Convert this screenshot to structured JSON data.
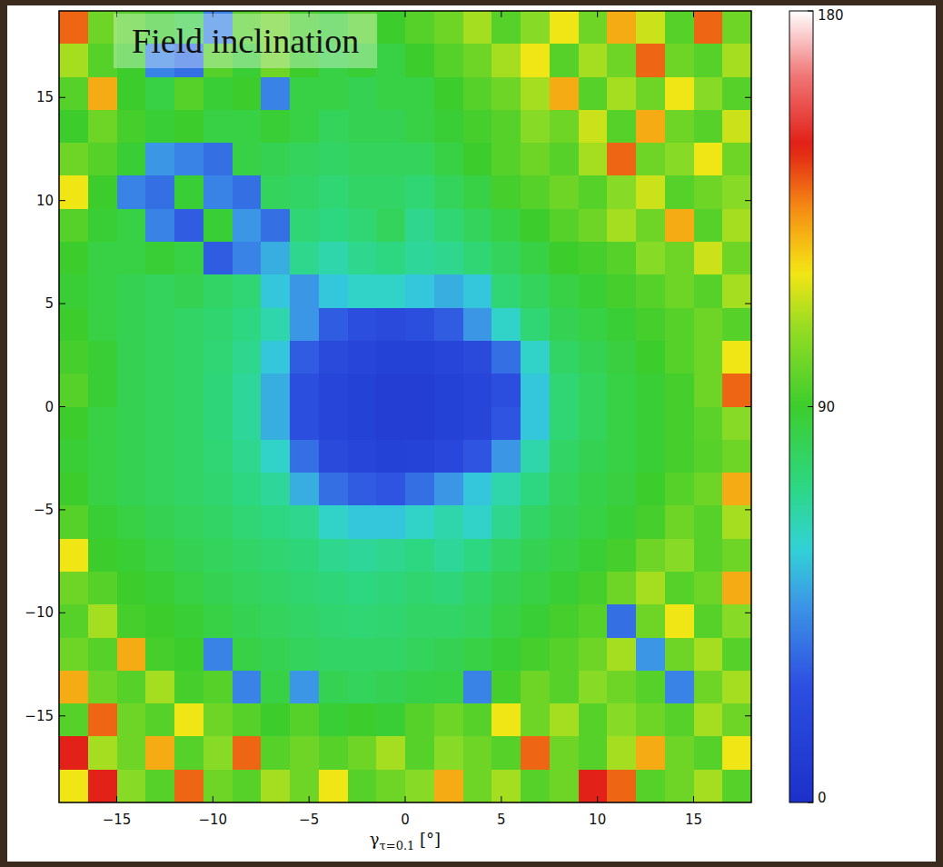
{
  "chart_data": {
    "type": "heatmap",
    "title": "Field inclination",
    "xlabel": "γτ=0.1 [°]",
    "xlim": [
      -18,
      18
    ],
    "ylim": [
      -19.2,
      19.2
    ],
    "xticks": [
      {
        "value": -15,
        "label": "−15"
      },
      {
        "value": -10,
        "label": "−10"
      },
      {
        "value": -5,
        "label": "−5"
      },
      0,
      5,
      10,
      15
    ],
    "yticks": [
      {
        "value": -15,
        "label": "−15"
      },
      {
        "value": -10,
        "label": "−10"
      },
      {
        "value": -5,
        "label": "−5"
      },
      0,
      5,
      10,
      15
    ],
    "x": [
      -17.25,
      -15.75,
      -14.25,
      -12.75,
      -11.25,
      -9.75,
      -8.25,
      -6.75,
      -5.25,
      -3.75,
      -2.25,
      -0.75,
      0.75,
      2.25,
      3.75,
      5.25,
      6.75,
      8.25,
      9.75,
      11.25,
      12.75,
      14.25,
      15.75,
      17.25
    ],
    "y": [
      18.4,
      16.8,
      15.2,
      13.6,
      12,
      10.4,
      8.8,
      7.2,
      5.6,
      4,
      2.4,
      0.8,
      -0.8,
      -2.4,
      -4,
      -5.6,
      -7.2,
      -8.8,
      -10.4,
      -12,
      -13.6,
      -15.2,
      -16.8,
      -18.4
    ],
    "cells": [
      [
        140,
        100,
        95,
        90,
        85,
        40,
        95,
        100,
        92,
        88,
        95,
        90,
        95,
        100,
        110,
        95,
        105,
        120,
        100,
        130,
        115,
        95,
        140,
        100
      ],
      [
        110,
        95,
        90,
        40,
        35,
        95,
        88,
        100,
        90,
        85,
        88,
        85,
        90,
        95,
        100,
        110,
        120,
        95,
        110,
        100,
        140,
        100,
        95,
        110
      ],
      [
        95,
        130,
        90,
        85,
        95,
        88,
        90,
        40,
        85,
        85,
        82,
        85,
        85,
        90,
        95,
        100,
        110,
        130,
        95,
        110,
        100,
        120,
        105,
        95
      ],
      [
        90,
        100,
        92,
        88,
        90,
        85,
        85,
        88,
        85,
        80,
        82,
        82,
        85,
        88,
        92,
        95,
        105,
        100,
        115,
        95,
        130,
        100,
        95,
        115
      ],
      [
        100,
        95,
        88,
        45,
        40,
        35,
        85,
        82,
        80,
        78,
        80,
        80,
        80,
        85,
        90,
        95,
        100,
        95,
        110,
        140,
        100,
        105,
        120,
        100
      ],
      [
        120,
        90,
        40,
        35,
        88,
        40,
        35,
        80,
        78,
        75,
        78,
        78,
        75,
        80,
        85,
        92,
        95,
        100,
        95,
        105,
        115,
        95,
        100,
        105
      ],
      [
        95,
        88,
        85,
        40,
        30,
        88,
        45,
        35,
        75,
        72,
        75,
        80,
        70,
        75,
        80,
        85,
        90,
        95,
        100,
        110,
        100,
        130,
        95,
        110
      ],
      [
        90,
        85,
        85,
        88,
        85,
        30,
        40,
        50,
        70,
        65,
        70,
        72,
        68,
        70,
        75,
        80,
        85,
        90,
        92,
        95,
        105,
        100,
        115,
        100
      ],
      [
        88,
        85,
        82,
        80,
        82,
        78,
        75,
        55,
        45,
        55,
        60,
        60,
        55,
        50,
        55,
        75,
        80,
        85,
        88,
        92,
        95,
        100,
        95,
        110
      ],
      [
        90,
        85,
        82,
        80,
        78,
        76,
        72,
        65,
        45,
        30,
        25,
        22,
        25,
        30,
        45,
        60,
        75,
        82,
        85,
        88,
        92,
        95,
        100,
        95
      ],
      [
        92,
        88,
        82,
        80,
        78,
        75,
        70,
        55,
        30,
        22,
        18,
        15,
        15,
        18,
        22,
        35,
        60,
        78,
        82,
        86,
        90,
        95,
        100,
        120
      ],
      [
        95,
        88,
        82,
        80,
        78,
        74,
        68,
        50,
        25,
        18,
        15,
        12,
        12,
        15,
        18,
        25,
        55,
        75,
        80,
        85,
        88,
        92,
        100,
        140
      ],
      [
        90,
        85,
        82,
        80,
        78,
        74,
        68,
        50,
        25,
        18,
        15,
        12,
        12,
        15,
        18,
        28,
        55,
        75,
        80,
        85,
        88,
        92,
        96,
        105
      ],
      [
        88,
        85,
        82,
        80,
        78,
        75,
        70,
        60,
        35,
        22,
        18,
        15,
        16,
        20,
        28,
        45,
        65,
        78,
        82,
        85,
        88,
        92,
        95,
        100
      ],
      [
        90,
        85,
        82,
        80,
        78,
        76,
        72,
        68,
        50,
        35,
        30,
        28,
        35,
        45,
        55,
        65,
        72,
        80,
        84,
        86,
        90,
        95,
        100,
        130
      ],
      [
        95,
        88,
        85,
        82,
        80,
        78,
        75,
        72,
        70,
        60,
        55,
        55,
        60,
        65,
        60,
        70,
        78,
        82,
        85,
        88,
        92,
        100,
        95,
        110
      ],
      [
        120,
        90,
        88,
        85,
        82,
        80,
        78,
        76,
        74,
        70,
        68,
        70,
        72,
        68,
        72,
        78,
        82,
        85,
        88,
        92,
        100,
        105,
        95,
        100
      ],
      [
        100,
        95,
        90,
        88,
        85,
        82,
        80,
        78,
        76,
        74,
        72,
        74,
        76,
        74,
        78,
        82,
        85,
        88,
        92,
        100,
        110,
        95,
        100,
        130
      ],
      [
        95,
        110,
        92,
        90,
        88,
        85,
        82,
        80,
        78,
        76,
        75,
        76,
        78,
        78,
        80,
        85,
        88,
        92,
        95,
        35,
        100,
        120,
        95,
        105
      ],
      [
        100,
        95,
        130,
        92,
        90,
        40,
        85,
        82,
        80,
        78,
        78,
        78,
        80,
        82,
        85,
        88,
        92,
        95,
        100,
        110,
        45,
        100,
        110,
        95
      ],
      [
        130,
        100,
        95,
        110,
        92,
        95,
        40,
        85,
        45,
        82,
        80,
        82,
        84,
        85,
        40,
        92,
        100,
        95,
        105,
        100,
        95,
        40,
        100,
        110
      ],
      [
        95,
        140,
        100,
        95,
        120,
        100,
        95,
        90,
        95,
        88,
        90,
        88,
        95,
        100,
        95,
        120,
        100,
        110,
        95,
        105,
        100,
        95,
        110,
        100
      ],
      [
        150,
        110,
        100,
        130,
        95,
        105,
        140,
        95,
        100,
        95,
        100,
        110,
        95,
        105,
        100,
        95,
        140,
        100,
        95,
        110,
        130,
        100,
        95,
        120
      ],
      [
        120,
        150,
        105,
        95,
        140,
        100,
        95,
        110,
        100,
        120,
        95,
        100,
        105,
        130,
        100,
        110,
        95,
        100,
        150,
        140,
        95,
        100,
        110,
        95
      ]
    ],
    "colorbar": {
      "lim": [
        0,
        180
      ],
      "ticks": [
        0,
        90,
        180
      ]
    }
  }
}
